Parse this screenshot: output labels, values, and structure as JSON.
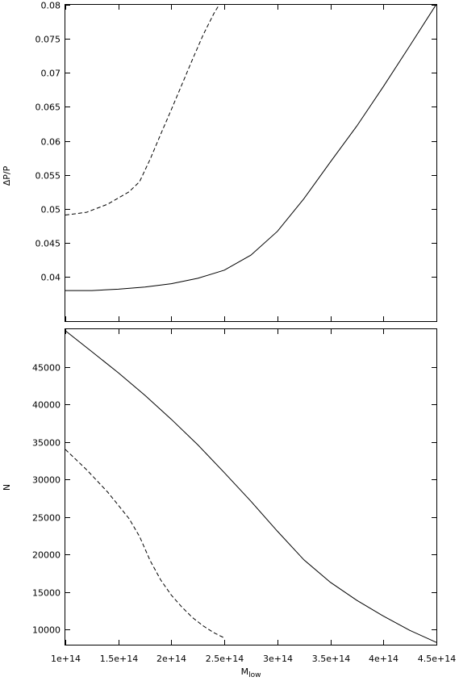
{
  "chart_data": [
    {
      "type": "line",
      "xlabel": "",
      "ylabel": "ΔP/P",
      "xlim": [
        100000000000000.0,
        450000000000000.0
      ],
      "ylim": [
        0.0335,
        0.08
      ],
      "xticks": [
        100000000000000.0,
        150000000000000.0,
        200000000000000.0,
        250000000000000.0,
        300000000000000.0,
        350000000000000.0,
        400000000000000.0,
        450000000000000.0
      ],
      "yticks": [
        0.04,
        0.045,
        0.05,
        0.055,
        0.06,
        0.065,
        0.07,
        0.075,
        0.08
      ],
      "ytick_labels": [
        "0.04",
        "0.045",
        "0.05",
        "0.055",
        "0.06",
        "0.065",
        "0.07",
        "0.075",
        "0.08"
      ],
      "series": [
        {
          "style": "solid",
          "x": [
            100000000000000.0,
            125000000000000.0,
            150000000000000.0,
            175000000000000.0,
            200000000000000.0,
            225000000000000.0,
            250000000000000.0,
            275000000000000.0,
            300000000000000.0,
            325000000000000.0,
            350000000000000.0,
            375000000000000.0,
            400000000000000.0,
            425000000000000.0,
            450000000000000.0
          ],
          "y": [
            0.038,
            0.038,
            0.0382,
            0.0385,
            0.039,
            0.0398,
            0.041,
            0.0432,
            0.0467,
            0.0515,
            0.0569,
            0.0622,
            0.068,
            0.074,
            0.0801
          ]
        },
        {
          "style": "dashed",
          "x": [
            100000000000000.0,
            120000000000000.0,
            140000000000000.0,
            160000000000000.0,
            170000000000000.0,
            180000000000000.0,
            190000000000000.0,
            200000000000000.0,
            210000000000000.0,
            220000000000000.0,
            230000000000000.0,
            240000000000000.0,
            245000000000000.0
          ],
          "y": [
            0.0491,
            0.0495,
            0.0507,
            0.0525,
            0.054,
            0.0573,
            0.061,
            0.0646,
            0.0683,
            0.072,
            0.0756,
            0.0787,
            0.08
          ]
        }
      ]
    },
    {
      "type": "line",
      "xlabel": "M",
      "xlabel_sub": "low",
      "ylabel": "N",
      "xlim": [
        100000000000000.0,
        450000000000000.0
      ],
      "ylim": [
        8000,
        50000
      ],
      "xticks": [
        100000000000000.0,
        150000000000000.0,
        200000000000000.0,
        250000000000000.0,
        300000000000000.0,
        350000000000000.0,
        400000000000000.0,
        450000000000000.0
      ],
      "xtick_labels": [
        "1e+14",
        "1.5e+14",
        "2e+14",
        "2.5e+14",
        "3e+14",
        "3.5e+14",
        "4e+14",
        "4.5e+14"
      ],
      "yticks": [
        10000,
        15000,
        20000,
        25000,
        30000,
        35000,
        40000,
        45000
      ],
      "ytick_labels": [
        "10000",
        "15000",
        "20000",
        "25000",
        "30000",
        "35000",
        "40000",
        "45000"
      ],
      "series": [
        {
          "style": "solid",
          "x": [
            100000000000000.0,
            125000000000000.0,
            150000000000000.0,
            175000000000000.0,
            200000000000000.0,
            225000000000000.0,
            250000000000000.0,
            275000000000000.0,
            300000000000000.0,
            325000000000000.0,
            350000000000000.0,
            375000000000000.0,
            400000000000000.0,
            425000000000000.0,
            450000000000000.0
          ],
          "y": [
            49800,
            47000,
            44200,
            41200,
            38000,
            34600,
            30900,
            27100,
            23100,
            19300,
            16300,
            13900,
            11800,
            9900,
            8300
          ]
        },
        {
          "style": "dashed",
          "x": [
            100000000000000.0,
            120000000000000.0,
            140000000000000.0,
            160000000000000.0,
            170000000000000.0,
            180000000000000.0,
            190000000000000.0,
            200000000000000.0,
            210000000000000.0,
            220000000000000.0,
            230000000000000.0,
            240000000000000.0,
            250000000000000.0
          ],
          "y": [
            34000,
            31300,
            28300,
            24800,
            22400,
            19200,
            16600,
            14600,
            13000,
            11600,
            10500,
            9600,
            8900
          ]
        }
      ]
    }
  ]
}
